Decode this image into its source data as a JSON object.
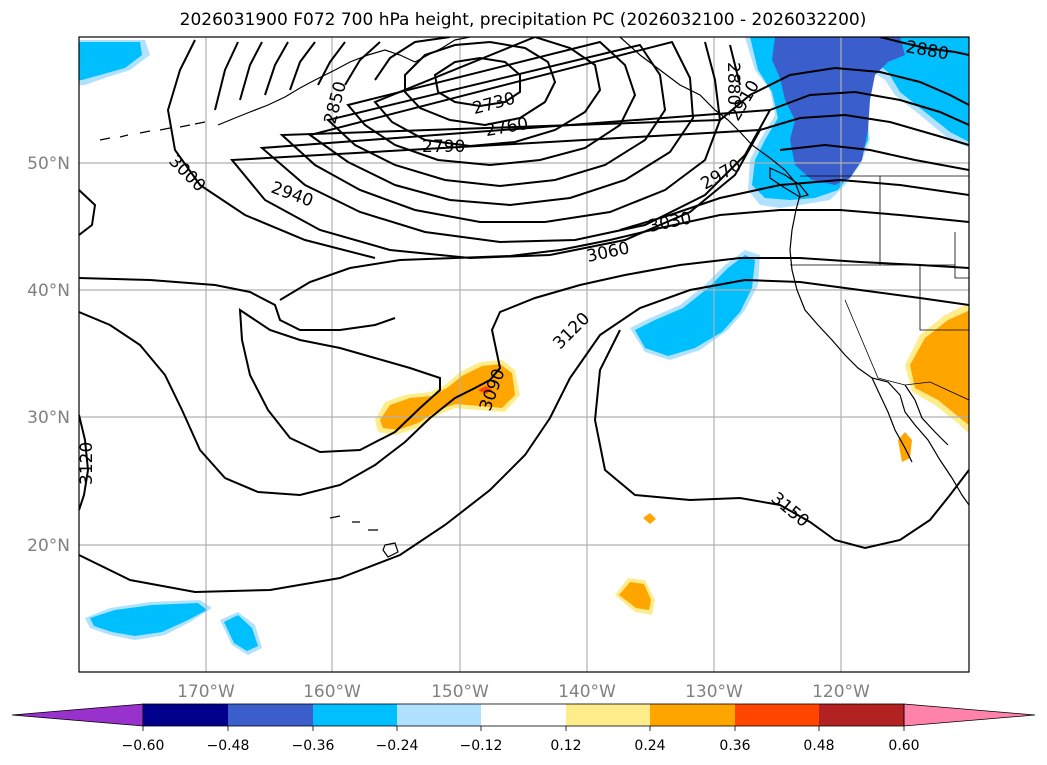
{
  "title": "2026031900 F072 700 hPa height, precipitation PC (2026032100 - 2026032200)",
  "latitude_labels": [
    "50°N",
    "40°N",
    "30°N",
    "20°N"
  ],
  "longitude_labels": [
    "170°W",
    "160°W",
    "150°W",
    "140°W",
    "130°W",
    "120°W"
  ],
  "contour_labels": [
    "2730",
    "2760",
    "2790",
    "2850",
    "2880",
    "2880",
    "2910",
    "2940",
    "2970",
    "3000",
    "3030",
    "3060",
    "3090",
    "3120",
    "3120",
    "3150"
  ],
  "colorbar": {
    "tick_labels": [
      "−0.60",
      "−0.48",
      "−0.36",
      "−0.24",
      "−0.12",
      "0.12",
      "0.24",
      "0.36",
      "0.48",
      "0.60"
    ],
    "colors": [
      "#9932cc",
      "#00008b",
      "#3a5fcd",
      "#00bfff",
      "#b0e2ff",
      "#ffffff",
      "#ffec8b",
      "#ffa500",
      "#ff4500",
      "#b22222",
      "#ff82ab"
    ]
  },
  "colors": {
    "positive_light": "#ffec8b",
    "positive_mid": "#ffa500",
    "positive_strong": "#ff4500",
    "negative_light": "#b0e2ff",
    "negative_mid": "#00bfff",
    "negative_strong": "#3a5fcd",
    "gridline": "#b0b0b0",
    "axis_label": "#808080"
  }
}
